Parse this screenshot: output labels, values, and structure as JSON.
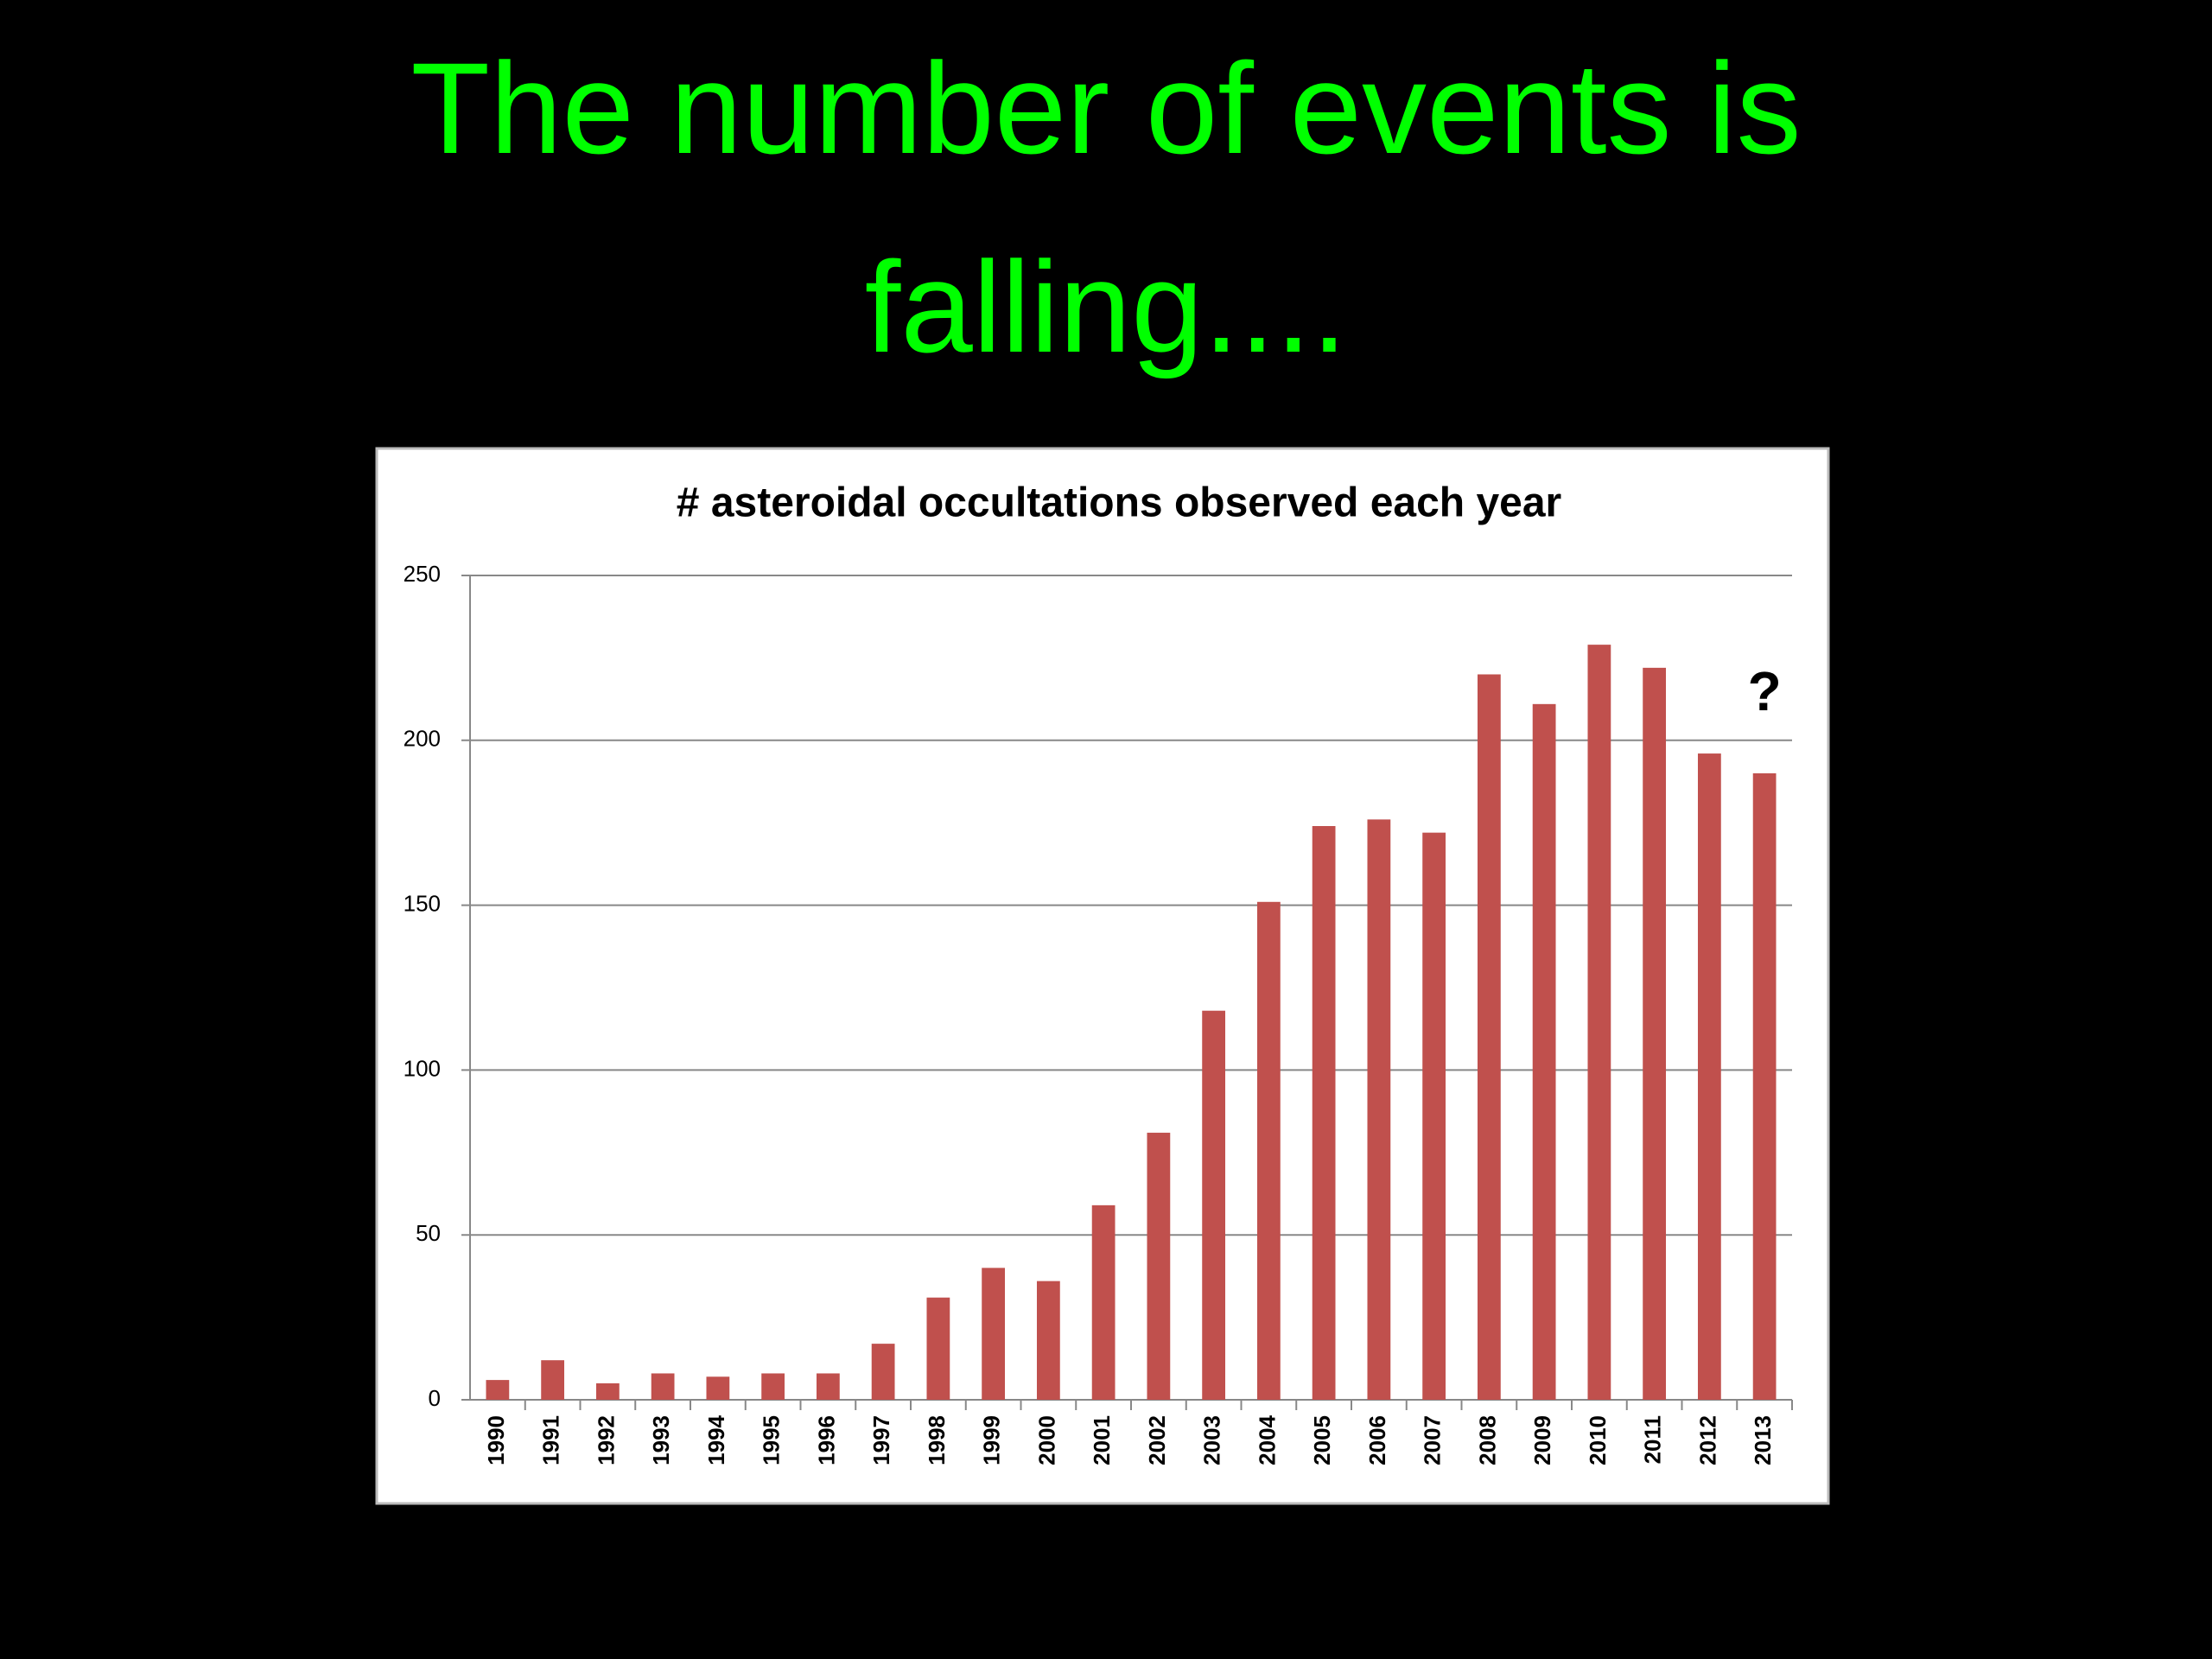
{
  "slide": {
    "title": "The number of events is falling...."
  },
  "chart_data": {
    "type": "bar",
    "title": "# asteroidal occultations observed each year",
    "categories": [
      "1990",
      "1991",
      "1992",
      "1993",
      "1994",
      "1995",
      "1996",
      "1997",
      "1998",
      "1999",
      "2000",
      "2001",
      "2002",
      "2003",
      "2004",
      "2005",
      "2006",
      "2007",
      "2008",
      "2009",
      "2010",
      "2011",
      "2012",
      "2013"
    ],
    "values": [
      6,
      12,
      5,
      8,
      7,
      8,
      8,
      17,
      31,
      40,
      36,
      59,
      81,
      118,
      151,
      174,
      176,
      172,
      220,
      211,
      229,
      222,
      196,
      190
    ],
    "color": "#c0504d",
    "ylim": [
      0,
      250
    ],
    "yticks": [
      0,
      50,
      100,
      150,
      200,
      250
    ],
    "grid": true,
    "annotation": "?"
  }
}
